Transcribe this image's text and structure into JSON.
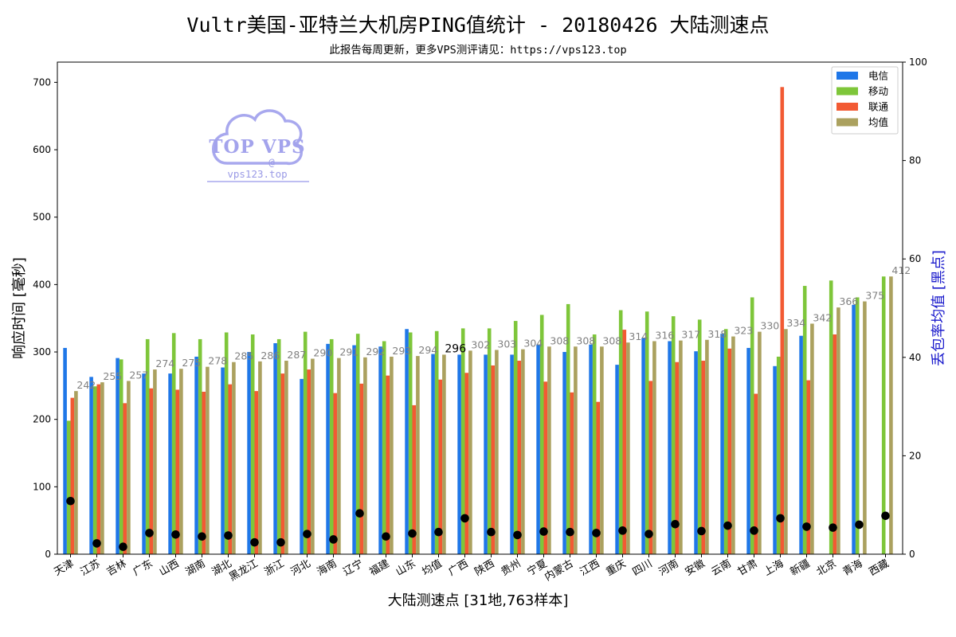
{
  "chart_data": {
    "type": "bar",
    "title": "Vultr美国-亚特兰大机房PING值统计 - 20180426 大陆测速点",
    "subtitle": "此报告每周更新，更多VPS测评请见：https://vps123.top",
    "xlabel": "大陆测速点 [31地,763样本]",
    "ylabel": "响应时间 [毫秒]",
    "ylabel_right": "丢包率均值 [黑点]",
    "ylim": [
      0,
      730
    ],
    "ylim_right": [
      0,
      100
    ],
    "yticks": [
      0,
      100,
      200,
      300,
      400,
      500,
      600,
      700
    ],
    "yticks_right": [
      0,
      20,
      40,
      60,
      80,
      100
    ],
    "legend_position": "top-right",
    "grid": false,
    "highlight_category": "均值",
    "categories": [
      "天津",
      "江苏",
      "吉林",
      "广东",
      "山西",
      "湖南",
      "湖北",
      "黑龙江",
      "浙江",
      "河北",
      "海南",
      "辽宁",
      "福建",
      "山东",
      "均值",
      "广西",
      "陕西",
      "贵州",
      "宁夏",
      "内蒙古",
      "江西",
      "重庆",
      "四川",
      "河南",
      "安徽",
      "云南",
      "甘肃",
      "上海",
      "新疆",
      "北京",
      "青海",
      "西藏"
    ],
    "series": [
      {
        "name": "电信",
        "color": "#1f77e8",
        "values": [
          306,
          263,
          291,
          268,
          268,
          293,
          277,
          300,
          313,
          260,
          312,
          310,
          308,
          334,
          297,
          296,
          296,
          296,
          311,
          300,
          311,
          281,
          321,
          316,
          301,
          327,
          306,
          279,
          324,
          0,
          370,
          0
        ]
      },
      {
        "name": "移动",
        "color": "#7ec63a",
        "values": [
          198,
          249,
          289,
          319,
          328,
          319,
          329,
          326,
          319,
          330,
          319,
          327,
          316,
          329,
          331,
          335,
          335,
          346,
          355,
          371,
          326,
          362,
          360,
          353,
          348,
          334,
          381,
          293,
          398,
          406,
          381,
          412
        ]
      },
      {
        "name": "联通",
        "color": "#f25a33",
        "values": [
          232,
          252,
          224,
          246,
          244,
          241,
          252,
          242,
          268,
          274,
          239,
          253,
          265,
          221,
          259,
          269,
          280,
          287,
          256,
          240,
          226,
          333,
          257,
          285,
          287,
          305,
          238,
          693,
          258,
          326,
          0,
          0
        ]
      },
      {
        "name": "均值",
        "color": "#aba15f",
        "values": [
          242,
          255,
          257,
          274,
          275,
          278,
          285,
          286,
          287,
          290,
          291,
          292,
          293,
          294,
          296,
          302,
          303,
          304,
          308,
          308,
          308,
          314,
          316,
          317,
          318,
          323,
          330,
          334,
          342,
          366,
          375,
          412
        ]
      }
    ],
    "avg_labels": [
      "242",
      "255",
      "257",
      "274",
      "275",
      "278",
      "285",
      "286",
      "287",
      "290",
      "291",
      "292",
      "293",
      "294",
      "296",
      "302",
      "303",
      "304",
      "308",
      "308",
      "308",
      "314",
      "316",
      "317",
      "318",
      "323",
      "330",
      "334",
      "342",
      "366",
      "375",
      "412"
    ],
    "loss_rate": [
      10.8,
      2.2,
      1.5,
      4.3,
      4.0,
      3.6,
      3.8,
      2.4,
      2.4,
      4.1,
      3.0,
      8.3,
      3.6,
      4.2,
      4.5,
      7.3,
      4.5,
      3.9,
      4.6,
      4.5,
      4.3,
      4.8,
      4.1,
      6.1,
      4.7,
      5.8,
      4.8,
      7.3,
      5.6,
      5.4,
      6.0,
      7.8
    ],
    "logo": {
      "brand": "TOP VPS",
      "at": "@",
      "domain": "vps123.top"
    }
  }
}
